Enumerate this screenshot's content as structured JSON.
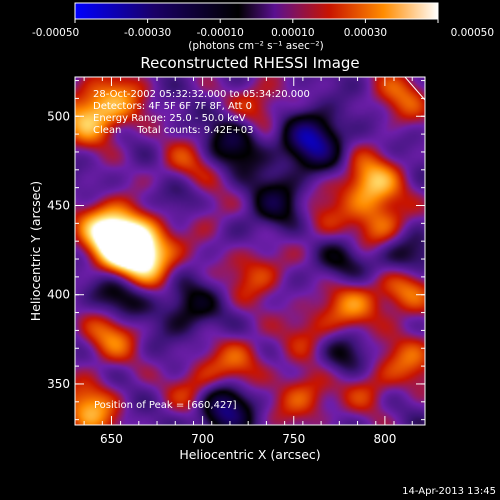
{
  "chart_data": {
    "type": "heatmap",
    "title": "Reconstructed RHESSI Image",
    "xlabel": "Heliocentric X (arcsec)",
    "ylabel": "Heliocentric Y (arcsec)",
    "xlim": [
      630,
      822
    ],
    "ylim": [
      327,
      522
    ],
    "x_ticks": [
      650,
      700,
      750,
      800
    ],
    "y_ticks": [
      350,
      400,
      450,
      500
    ],
    "colorbar": {
      "ticks": [
        "-0.00050",
        "-0.00030",
        "-0.00010",
        "0.00010",
        "0.00030",
        "0.00050"
      ],
      "tick_values": [
        -0.0005,
        -0.0003,
        -0.0001,
        0.0001,
        0.0003,
        0.0005
      ],
      "range": [
        -0.0005,
        0.0005
      ],
      "unit_label": "(photons cm⁻² s⁻¹ asec⁻²)",
      "colors": [
        "#0000ff",
        "#1a0066",
        "#000000",
        "#4a1aa8",
        "#c81400",
        "#ff8c00",
        "#ffffff"
      ]
    },
    "annotations": [
      "28-Oct-2002 05:32:32.000 to 05:34:20.000",
      "Detectors: 4F 5F 6F 7F 8F, Att 0",
      "Energy Range: 25.0 - 50.0 keV",
      "Clean     Total counts: 9.42E+03"
    ],
    "peak_label": "Position of Peak = [660,427]",
    "peak": {
      "x": 660,
      "y": 427,
      "value": 0.0005
    },
    "timestamp": "14-Apr-2013 13:45",
    "sources": [
      {
        "x": 660,
        "y": 427,
        "w": 0.00058
      },
      {
        "x": 648,
        "y": 436,
        "w": 0.0004
      },
      {
        "x": 672,
        "y": 419,
        "w": 0.00028
      },
      {
        "x": 638,
        "y": 500,
        "w": 0.00034
      },
      {
        "x": 655,
        "y": 510,
        "w": 0.0002
      },
      {
        "x": 690,
        "y": 470,
        "w": 0.00022
      },
      {
        "x": 700,
        "y": 448,
        "w": 0.00018
      },
      {
        "x": 730,
        "y": 505,
        "w": 0.0002
      },
      {
        "x": 792,
        "y": 462,
        "w": 0.00036
      },
      {
        "x": 810,
        "y": 512,
        "w": 0.0002
      },
      {
        "x": 800,
        "y": 436,
        "w": 0.00026
      },
      {
        "x": 765,
        "y": 442,
        "w": 0.00015
      },
      {
        "x": 810,
        "y": 405,
        "w": 0.0003
      },
      {
        "x": 782,
        "y": 395,
        "w": 0.00024
      },
      {
        "x": 730,
        "y": 412,
        "w": 0.0002
      },
      {
        "x": 650,
        "y": 378,
        "w": 0.00026
      },
      {
        "x": 638,
        "y": 335,
        "w": 0.0003
      },
      {
        "x": 700,
        "y": 346,
        "w": 0.0003
      },
      {
        "x": 720,
        "y": 362,
        "w": 0.0002
      },
      {
        "x": 755,
        "y": 343,
        "w": 0.00022
      },
      {
        "x": 790,
        "y": 350,
        "w": 0.00018
      },
      {
        "x": 760,
        "y": 380,
        "w": 0.00016
      },
      {
        "x": 815,
        "y": 365,
        "w": 0.0002
      },
      {
        "x": 760,
        "y": 486,
        "w": -0.0004
      },
      {
        "x": 718,
        "y": 486,
        "w": -0.00025
      },
      {
        "x": 710,
        "y": 338,
        "w": -0.00045
      },
      {
        "x": 690,
        "y": 455,
        "w": -0.00022
      },
      {
        "x": 808,
        "y": 420,
        "w": -0.0003
      },
      {
        "x": 740,
        "y": 450,
        "w": -0.00022
      },
      {
        "x": 775,
        "y": 418,
        "w": -0.00015
      },
      {
        "x": 655,
        "y": 398,
        "w": -0.00022
      },
      {
        "x": 692,
        "y": 392,
        "w": -0.00018
      },
      {
        "x": 778,
        "y": 365,
        "w": -0.00018
      }
    ]
  }
}
